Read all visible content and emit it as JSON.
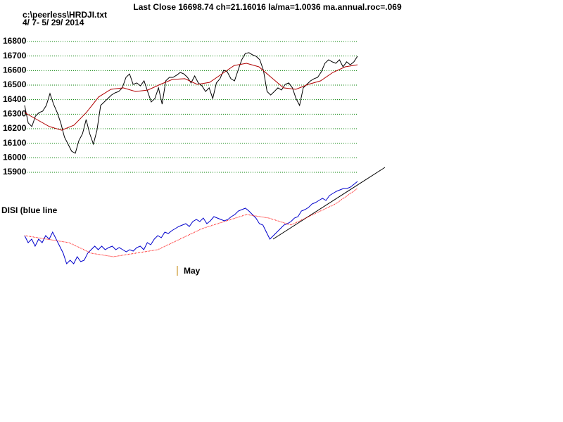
{
  "chart_data": [
    {
      "type": "line",
      "title": "Last Close 16698.74 ch=21.16016  la/ma=1.0036 ma.annual.roc=.069",
      "file_label": "c:\\peerless\\HRDJI.txt",
      "date_range": " 4/ 7- 5/ 29/ 2014",
      "ylim": [
        15900,
        16800
      ],
      "yticks": [
        15900,
        16000,
        16100,
        16200,
        16300,
        16400,
        16500,
        16600,
        16700,
        16800
      ],
      "grid": true,
      "series": [
        {
          "color": "#000000",
          "values": [
            16360,
            16239,
            16215,
            16287,
            16311,
            16321,
            16360,
            16442,
            16369,
            16311,
            16239,
            16142,
            16094,
            16045,
            16031,
            16118,
            16166,
            16263,
            16166,
            16094,
            16190,
            16360,
            16384,
            16408,
            16432,
            16447,
            16456,
            16481,
            16553,
            16577,
            16505,
            16515,
            16495,
            16529,
            16456,
            16384,
            16408,
            16481,
            16369,
            16529,
            16553,
            16553,
            16568,
            16587,
            16577,
            16553,
            16515,
            16563,
            16515,
            16495,
            16456,
            16481,
            16408,
            16515,
            16544,
            16602,
            16592,
            16544,
            16529,
            16602,
            16674,
            16718,
            16723,
            16708,
            16698,
            16674,
            16602,
            16456,
            16432,
            16456,
            16481,
            16466,
            16505,
            16515,
            16481,
            16408,
            16360,
            16481,
            16505,
            16529,
            16544,
            16553,
            16592,
            16650,
            16674,
            16660,
            16650,
            16674,
            16626,
            16660,
            16640,
            16660,
            16699
          ]
        },
        {
          "color": "#b00000",
          "values": [
            16311,
            16263,
            16215,
            16190,
            16224,
            16311,
            16418,
            16471,
            16481,
            16456,
            16466,
            16505,
            16539,
            16544,
            16505,
            16519,
            16577,
            16635,
            16650,
            16626,
            16553,
            16481,
            16471,
            16505,
            16529,
            16587,
            16626,
            16640
          ]
        }
      ]
    },
    {
      "type": "line",
      "label": "DISI (blue line",
      "annotation": "May",
      "series": [
        {
          "color": "#0000cc",
          "values": [
            65,
            55,
            60,
            50,
            60,
            55,
            65,
            60,
            70,
            60,
            50,
            40,
            25,
            30,
            25,
            35,
            28,
            30,
            40,
            45,
            50,
            45,
            50,
            45,
            48,
            50,
            45,
            48,
            45,
            42,
            45,
            43,
            48,
            50,
            45,
            55,
            52,
            60,
            65,
            62,
            70,
            68,
            72,
            75,
            78,
            80,
            82,
            78,
            85,
            88,
            85,
            90,
            82,
            86,
            92,
            90,
            88,
            86,
            88,
            92,
            95,
            100,
            102,
            104,
            100,
            95,
            90,
            82,
            80,
            70,
            60,
            65,
            70,
            75,
            80,
            82,
            85,
            90,
            92,
            100,
            102,
            105,
            110,
            112,
            115,
            118,
            115,
            122,
            125,
            128,
            130,
            132,
            132,
            134,
            138,
            142
          ]
        },
        {
          "color": "#ff0000",
          "values": [
            65,
            60,
            55,
            40,
            35,
            40,
            45,
            60,
            75,
            85,
            95,
            90,
            80,
            95,
            110,
            132
          ]
        }
      ]
    }
  ]
}
